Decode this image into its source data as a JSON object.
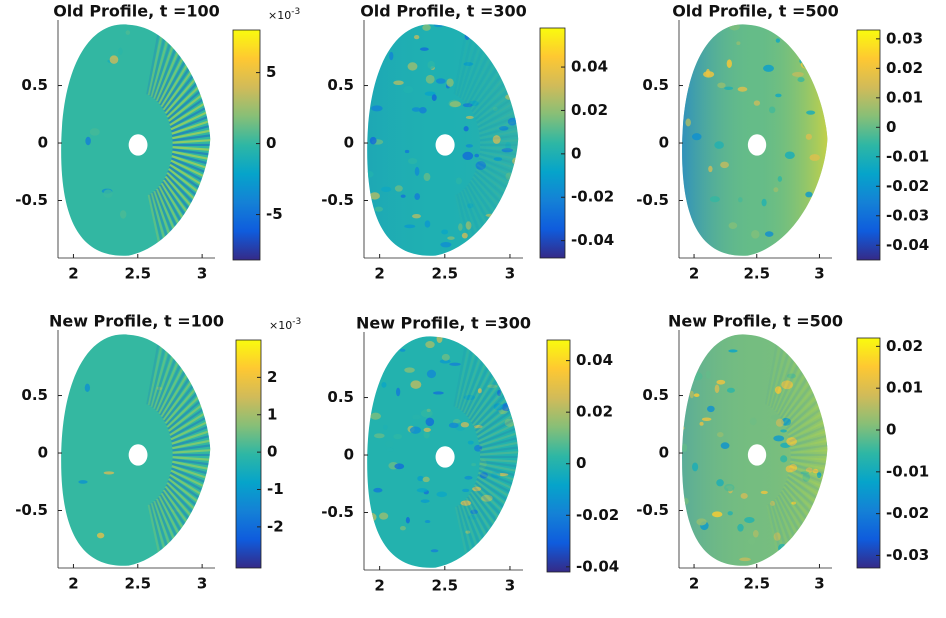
{
  "chart_data": [
    {
      "type": "heatmap",
      "title": "Old Profile, t =100",
      "xlim": [
        1.88,
        3.1
      ],
      "ylim": [
        -1.0,
        1.07
      ],
      "xticks": [
        2,
        2.5,
        3
      ],
      "yticks": [
        -0.5,
        0,
        0.5
      ],
      "clim": [
        -8.2,
        8
      ],
      "cticks": [
        -5,
        0,
        5
      ],
      "colorbar_multiplier": {
        "base": "×10",
        "exponent": "-3"
      }
    },
    {
      "type": "heatmap",
      "title": "Old Profile, t =300",
      "xlim": [
        1.88,
        3.1
      ],
      "ylim": [
        -1.0,
        1.07
      ],
      "xticks": [
        2,
        2.5,
        3
      ],
      "yticks": [
        -0.5,
        0,
        0.5
      ],
      "clim": [
        -0.048,
        0.058
      ],
      "cticks": [
        -0.04,
        -0.02,
        0,
        0.02,
        0.04
      ]
    },
    {
      "type": "heatmap",
      "title": "Old Profile, t =500",
      "xlim": [
        1.88,
        3.1
      ],
      "ylim": [
        -1.0,
        1.07
      ],
      "xticks": [
        2,
        2.5,
        3
      ],
      "yticks": [
        -0.5,
        0,
        0.5
      ],
      "clim": [
        -0.045,
        0.033
      ],
      "cticks": [
        -0.04,
        -0.03,
        -0.02,
        -0.01,
        0,
        0.01,
        0.02,
        0.03
      ]
    },
    {
      "type": "heatmap",
      "title": "New Profile, t =100",
      "xlim": [
        1.88,
        3.1
      ],
      "ylim": [
        -1.0,
        1.07
      ],
      "xticks": [
        2,
        2.5,
        3
      ],
      "yticks": [
        -0.5,
        0,
        0.5
      ],
      "clim": [
        -3.1,
        3
      ],
      "cticks": [
        -2,
        -1,
        0,
        1,
        2
      ],
      "colorbar_multiplier": {
        "base": "×10",
        "exponent": "-3"
      }
    },
    {
      "type": "heatmap",
      "title": "New Profile, t =300",
      "xlim": [
        1.88,
        3.1
      ],
      "ylim": [
        -1.0,
        1.07
      ],
      "xticks": [
        2,
        2.5,
        3
      ],
      "yticks": [
        -0.5,
        0,
        0.5
      ],
      "clim": [
        -0.042,
        0.048
      ],
      "cticks": [
        -0.04,
        -0.02,
        0,
        0.02,
        0.04
      ]
    },
    {
      "type": "heatmap",
      "title": "New Profile, t =500",
      "xlim": [
        1.88,
        3.1
      ],
      "ylim": [
        -1.0,
        1.07
      ],
      "xticks": [
        2,
        2.5,
        3
      ],
      "yticks": [
        -0.5,
        0,
        0.5
      ],
      "clim": [
        -0.033,
        0.022
      ],
      "cticks": [
        -0.03,
        -0.02,
        -0.01,
        0,
        0.01,
        0.02
      ]
    }
  ]
}
